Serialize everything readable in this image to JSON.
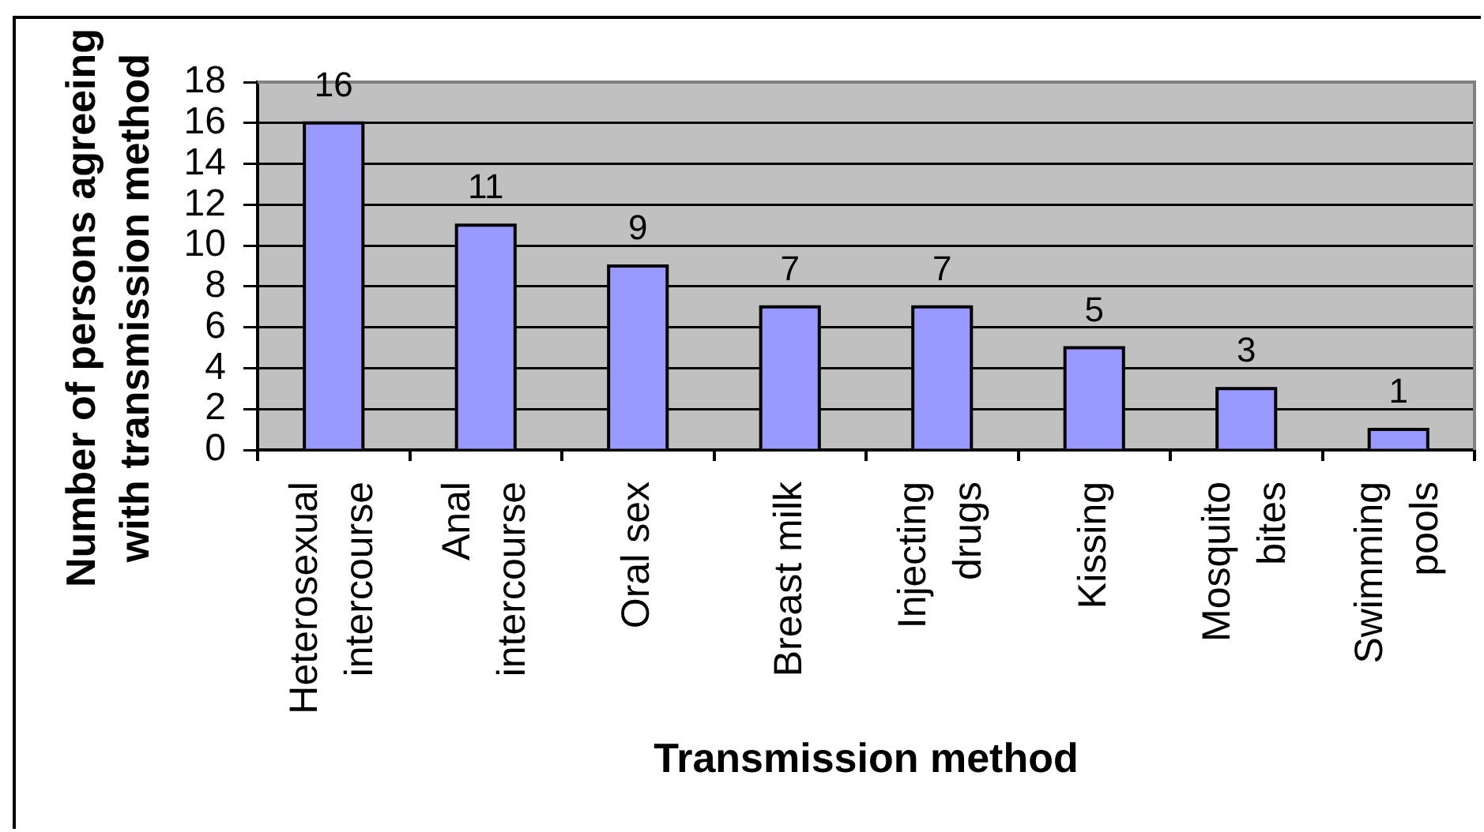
{
  "chart_data": {
    "type": "bar",
    "xlabel": "Transmission method",
    "ylabel": "Number of persons agreeing with transmission method",
    "categories": [
      "Heterosexual intercourse",
      "Anal intercourse",
      "Oral sex",
      "Breast milk",
      "Injecting drugs",
      "Kissing",
      "Mosquito bites",
      "Swimming pools"
    ],
    "values": [
      16,
      11,
      9,
      7,
      7,
      5,
      3,
      1
    ],
    "color": "#9999ff",
    "ylim": [
      0,
      18
    ],
    "yticks": [
      0,
      2,
      4,
      6,
      8,
      10,
      12,
      14,
      16,
      18
    ],
    "grid": "y",
    "data_labels": true
  }
}
